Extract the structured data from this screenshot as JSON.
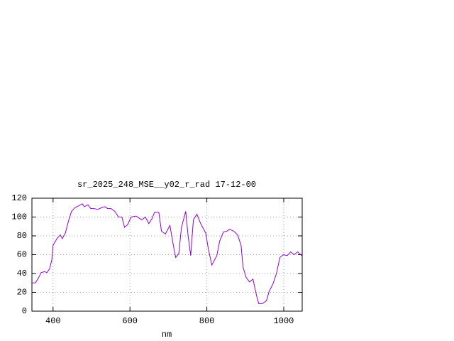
{
  "chart_data": {
    "type": "line",
    "title": "sr_2025_248_MSE__y02_r_rad 17-12-00",
    "x_label": "nm",
    "x": [
      345,
      354,
      363,
      369,
      378,
      384,
      391,
      397,
      400,
      410,
      419,
      424,
      432,
      441,
      448,
      457,
      467,
      476,
      481,
      491,
      498,
      507,
      516,
      526,
      535,
      542,
      551,
      561,
      570,
      579,
      586,
      594,
      603,
      616,
      623,
      631,
      640,
      649,
      657,
      664,
      675,
      682,
      692,
      704,
      712,
      719,
      727,
      734,
      745,
      751,
      758,
      765,
      774,
      784,
      797,
      804,
      813,
      826,
      833,
      843,
      852,
      859,
      870,
      880,
      889,
      894,
      902,
      911,
      920,
      929,
      935,
      944,
      955,
      962,
      972,
      981,
      990,
      999,
      1009,
      1018,
      1027,
      1036,
      1044,
      1047
    ],
    "series": [
      {
        "name": "sr_2025_248_MSE__y02_r_rad 17-12-00",
        "color": "#9400d3",
        "values": [
          30,
          30,
          36,
          41,
          42,
          41,
          45,
          55,
          70,
          77,
          81,
          77,
          83,
          97,
          106,
          110,
          112,
          114,
          111,
          113,
          109,
          109,
          108,
          110,
          111,
          109,
          109,
          106,
          100,
          100,
          89,
          92,
          100,
          101,
          99,
          97,
          100,
          93,
          98,
          105,
          105,
          85,
          82,
          91,
          72,
          57,
          61,
          89,
          106,
          81,
          59,
          97,
          103,
          93,
          83,
          66,
          49,
          59,
          74,
          84,
          85,
          87,
          85,
          81,
          70,
          47,
          36,
          31,
          34,
          17,
          8,
          8,
          11,
          21,
          29,
          40,
          57,
          60,
          59,
          63,
          60,
          63,
          60,
          59
        ]
      }
    ],
    "xlim": [
      345,
      1048
    ],
    "ylim": [
      0,
      120
    ],
    "xticks": [
      400,
      600,
      800,
      1000
    ],
    "yticks": [
      0,
      20,
      40,
      60,
      80,
      100,
      120
    ],
    "grid": true
  }
}
